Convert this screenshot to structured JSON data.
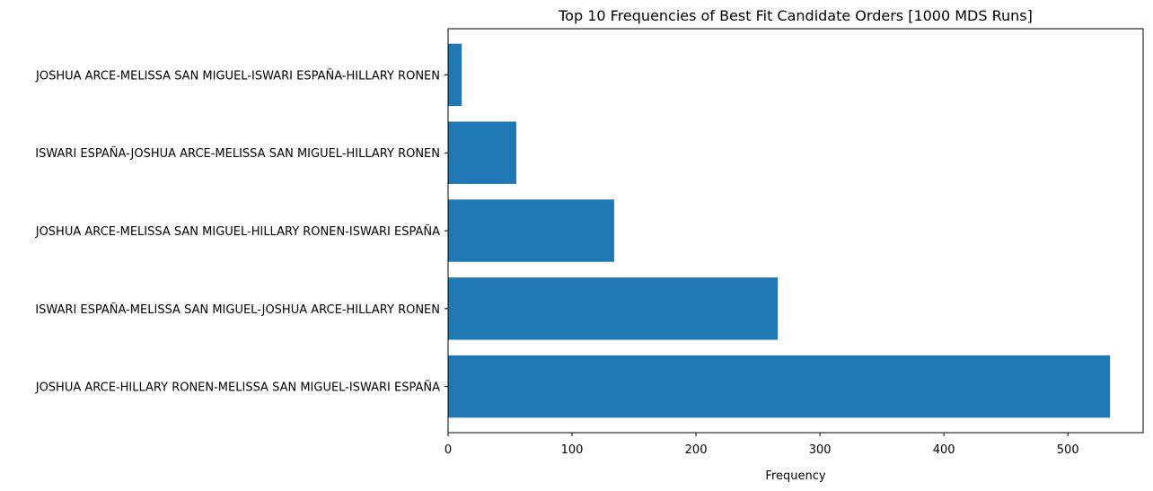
{
  "chart_data": {
    "type": "bar",
    "orientation": "horizontal",
    "title": "Top 10 Frequencies of Best Fit Candidate Orders [1000 MDS Runs]",
    "xlabel": "Frequency",
    "ylabel": "",
    "categories": [
      "JOSHUA ARCE-HILLARY RONEN-MELISSA SAN MIGUEL-ISWARI ESPAÑA",
      "ISWARI ESPAÑA-MELISSA SAN MIGUEL-JOSHUA ARCE-HILLARY RONEN",
      "JOSHUA ARCE-MELISSA SAN MIGUEL-HILLARY RONEN-ISWARI ESPAÑA",
      "ISWARI ESPAÑA-JOSHUA ARCE-MELISSA SAN MIGUEL-HILLARY RONEN",
      "JOSHUA ARCE-MELISSA SAN MIGUEL-ISWARI ESPAÑA-HILLARY RONEN"
    ],
    "values": [
      534,
      266,
      134,
      55,
      11
    ],
    "xticks": [
      0,
      100,
      200,
      300,
      400,
      500
    ],
    "xlim": [
      0,
      560.7
    ],
    "bar_color": "#1f77b4",
    "grid": false,
    "legend": "none"
  }
}
